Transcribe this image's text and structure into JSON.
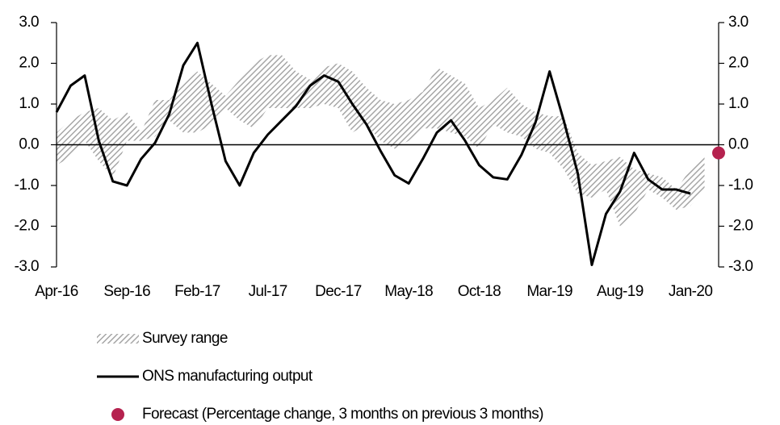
{
  "chart_data": {
    "type": "line",
    "categories": [
      "Apr-16",
      null,
      null,
      null,
      null,
      "Sep-16",
      null,
      null,
      null,
      null,
      "Feb-17",
      null,
      null,
      null,
      null,
      "Jul-17",
      null,
      null,
      null,
      null,
      "Dec-17",
      null,
      null,
      null,
      null,
      "May-18",
      null,
      null,
      null,
      null,
      "Oct-18",
      null,
      null,
      null,
      null,
      "Mar-19",
      null,
      null,
      null,
      null,
      "Aug-19",
      null,
      null,
      null,
      null,
      "Jan-20",
      null,
      null
    ],
    "series": [
      {
        "name": "Survey range",
        "type": "band",
        "color": "#a6a6a6",
        "high": [
          0.3,
          0.6,
          0.8,
          0.9,
          0.6,
          0.8,
          0.3,
          1.1,
          1.1,
          1.5,
          1.8,
          1.5,
          1.2,
          1.6,
          2.0,
          2.2,
          2.2,
          1.8,
          1.6,
          1.9,
          2.0,
          1.8,
          1.4,
          1.1,
          1.0,
          1.1,
          1.3,
          1.9,
          1.7,
          1.5,
          0.9,
          1.1,
          1.4,
          1.0,
          0.8,
          0.7,
          0.7,
          -0.2,
          -0.5,
          -0.4,
          -0.3,
          -0.6,
          -0.7,
          -0.8,
          -1.1,
          -0.6,
          -0.3,
          null
        ],
        "low": [
          -0.5,
          -0.3,
          0.1,
          -0.4,
          -0.8,
          0.1,
          0.1,
          0.2,
          0.6,
          0.3,
          0.3,
          0.5,
          0.9,
          0.6,
          0.4,
          0.9,
          0.9,
          0.9,
          0.9,
          1.0,
          0.9,
          0.3,
          0.5,
          0.1,
          -0.1,
          0.1,
          0.4,
          0.4,
          0.3,
          0.2,
          -0.1,
          0.5,
          0.3,
          0.2,
          -0.1,
          -0.2,
          -0.6,
          -1.2,
          -1.3,
          -1.1,
          -2.0,
          -1.7,
          -1.1,
          -1.3,
          -1.6,
          -1.5,
          -1.1,
          null
        ]
      },
      {
        "name": "ONS manufacturing output",
        "type": "line",
        "color": "#000000",
        "values": [
          0.8,
          1.45,
          1.7,
          0.1,
          -0.9,
          -1.0,
          -0.35,
          0.05,
          0.75,
          1.95,
          2.5,
          1.0,
          -0.4,
          -1.0,
          -0.2,
          0.25,
          0.6,
          0.95,
          1.45,
          1.7,
          1.55,
          1.0,
          0.5,
          -0.15,
          -0.75,
          -0.95,
          -0.35,
          0.3,
          0.6,
          0.1,
          -0.5,
          -0.8,
          -0.85,
          -0.25,
          0.55,
          1.8,
          0.6,
          -0.7,
          -2.95,
          -1.7,
          -1.15,
          -0.2,
          -0.85,
          -1.1,
          -1.1,
          -1.2,
          null,
          null
        ]
      },
      {
        "name": "Forecast (Percentage change, 3 months on previous 3 months)",
        "type": "scatter",
        "color": "#b5224f",
        "values": [
          null,
          null,
          null,
          null,
          null,
          null,
          null,
          null,
          null,
          null,
          null,
          null,
          null,
          null,
          null,
          null,
          null,
          null,
          null,
          null,
          null,
          null,
          null,
          null,
          null,
          null,
          null,
          null,
          null,
          null,
          null,
          null,
          null,
          null,
          null,
          null,
          null,
          null,
          null,
          null,
          null,
          null,
          null,
          null,
          null,
          null,
          null,
          -0.2
        ]
      }
    ],
    "ylim": [
      -3,
      3
    ],
    "yticks": [
      {
        "value": 3,
        "label": "3.0"
      },
      {
        "value": 2,
        "label": "2.0"
      },
      {
        "value": 1,
        "label": "1.0"
      },
      {
        "value": 0,
        "label": "0.0"
      },
      {
        "value": -1,
        "label": "-1.0"
      },
      {
        "value": -2,
        "label": "-2.0"
      },
      {
        "value": -3,
        "label": "-3.0"
      }
    ],
    "y2lim": [
      -3,
      3
    ],
    "y2ticks": [
      {
        "value": 3,
        "label": "3.0"
      },
      {
        "value": 2,
        "label": "2.0"
      },
      {
        "value": 1,
        "label": "1.0"
      },
      {
        "value": 0,
        "label": "0.0"
      },
      {
        "value": -1,
        "label": "-1.0"
      },
      {
        "value": -2,
        "label": "-2.0"
      },
      {
        "value": -3,
        "label": "-3.0"
      }
    ],
    "zero_line": true
  }
}
